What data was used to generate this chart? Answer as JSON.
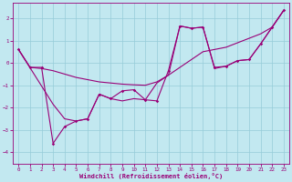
{
  "xlabel": "Windchill (Refroidissement éolien,°C)",
  "background_color": "#c2e8f0",
  "grid_color": "#96ccd8",
  "line_color": "#990077",
  "xlim": [
    -0.5,
    23.5
  ],
  "ylim": [
    -4.5,
    2.7
  ],
  "yticks": [
    -4,
    -3,
    -2,
    -1,
    0,
    1,
    2
  ],
  "xticks": [
    0,
    1,
    2,
    3,
    4,
    5,
    6,
    7,
    8,
    9,
    10,
    11,
    12,
    13,
    14,
    15,
    16,
    17,
    18,
    19,
    20,
    21,
    22,
    23
  ],
  "series1_x": [
    0,
    1,
    2,
    3,
    4,
    5,
    6,
    7,
    8,
    9,
    10,
    11,
    12,
    13,
    14,
    15,
    16,
    17,
    18,
    19,
    20,
    21,
    22,
    23
  ],
  "series1_y": [
    0.6,
    -0.2,
    -0.2,
    -3.6,
    -2.85,
    -2.6,
    -2.5,
    -1.4,
    -1.6,
    -1.25,
    -1.2,
    -1.65,
    -1.7,
    -0.35,
    1.65,
    1.55,
    1.6,
    -0.2,
    -0.15,
    0.1,
    0.15,
    0.85,
    1.6,
    2.35
  ],
  "series2_x": [
    0,
    1,
    2,
    3,
    4,
    5,
    6,
    7,
    8,
    9,
    10,
    11,
    12,
    13,
    14,
    15,
    16,
    17,
    18,
    19,
    20,
    21,
    22,
    23
  ],
  "series2_y": [
    0.6,
    -0.2,
    -0.25,
    -0.35,
    -0.5,
    -0.65,
    -0.75,
    -0.85,
    -0.9,
    -0.95,
    -0.98,
    -1.0,
    -0.85,
    -0.55,
    -0.2,
    0.15,
    0.5,
    0.6,
    0.7,
    0.9,
    1.1,
    1.3,
    1.6,
    2.35
  ],
  "series3_x": [
    0,
    3,
    4,
    5,
    6,
    7,
    8,
    9,
    10,
    11,
    12,
    13,
    14,
    15,
    16,
    17,
    18,
    19,
    20,
    21,
    22,
    23
  ],
  "series3_y": [
    0.6,
    -1.85,
    -2.5,
    -2.6,
    -2.5,
    -1.4,
    -1.6,
    -1.7,
    -1.6,
    -1.65,
    -0.9,
    -0.55,
    1.65,
    1.55,
    1.6,
    -0.25,
    -0.15,
    0.1,
    0.15,
    0.85,
    1.6,
    2.35
  ]
}
